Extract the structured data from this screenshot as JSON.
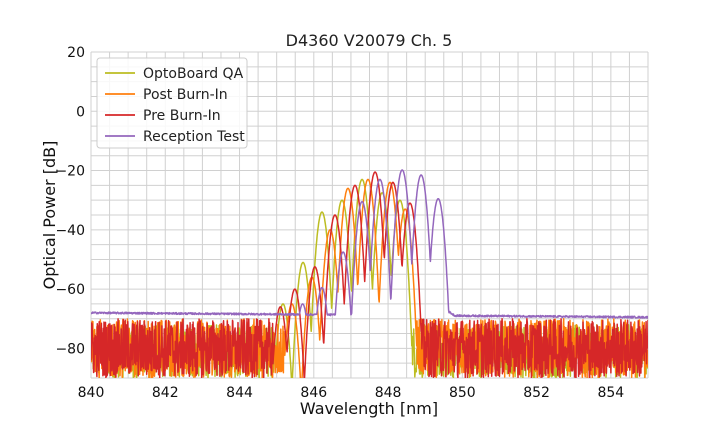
{
  "chart_data": {
    "type": "line",
    "title": "D4360 V20079 Ch. 5",
    "xlabel": "Wavelength [nm]",
    "ylabel": "Optical Power [dB]",
    "xlim": [
      840,
      855
    ],
    "ylim": [
      -90,
      20
    ],
    "xticks": [
      840,
      842,
      844,
      846,
      848,
      850,
      852,
      854
    ],
    "yticks": [
      -80,
      -60,
      -40,
      -20,
      0,
      20
    ],
    "xtick_labels": [
      "840",
      "842",
      "844",
      "846",
      "848",
      "850",
      "852",
      "854"
    ],
    "ytick_labels": [
      "−80",
      "−60",
      "−40",
      "−20",
      "0",
      "20"
    ],
    "minor_grid_step": {
      "x": 0.5,
      "y": 5
    },
    "grid": true,
    "legend_position": "top-left",
    "series": [
      {
        "name": "OptoBoard QA",
        "color": "#bcbd22",
        "peaks": [
          [
            845.17,
            -65
          ],
          [
            845.71,
            -51
          ],
          [
            846.22,
            -34
          ],
          [
            846.76,
            -30
          ],
          [
            847.3,
            -23
          ],
          [
            847.84,
            -27.5
          ],
          [
            848.32,
            -30
          ]
        ],
        "noise_floor_db": [
          -90,
          -72
        ],
        "floor_type": "noise"
      },
      {
        "name": "Post Burn-In",
        "color": "#ff7f0e",
        "peaks": [
          [
            845.41,
            -65
          ],
          [
            845.95,
            -56
          ],
          [
            846.44,
            -40
          ],
          [
            846.92,
            -26
          ],
          [
            847.46,
            -23
          ],
          [
            848.05,
            -24
          ],
          [
            848.46,
            -33
          ]
        ],
        "noise_floor_db": [
          -90,
          -70
        ],
        "floor_type": "noise"
      },
      {
        "name": "Pre Burn-In",
        "color": "#d62728",
        "peaks": [
          [
            845.1,
            -66
          ],
          [
            845.49,
            -60
          ],
          [
            846.03,
            -52.5
          ],
          [
            846.57,
            -35
          ],
          [
            847.11,
            -25
          ],
          [
            847.65,
            -20.5
          ],
          [
            848.13,
            -24
          ],
          [
            848.59,
            -31
          ]
        ],
        "noise_floor_db": [
          -90,
          -70
        ],
        "floor_type": "noise"
      },
      {
        "name": "Reception Test",
        "color": "#9467bd",
        "peaks": [
          [
            845.7,
            -65
          ],
          [
            846.22,
            -59.5
          ],
          [
            846.79,
            -47.5
          ],
          [
            847.3,
            -30.5
          ],
          [
            847.78,
            -23
          ],
          [
            848.38,
            -19.8
          ],
          [
            848.89,
            -21.5
          ],
          [
            849.35,
            -29.5
          ]
        ],
        "noise_floor_db": [
          -68,
          -69.5
        ],
        "floor_type": "smooth"
      }
    ]
  }
}
